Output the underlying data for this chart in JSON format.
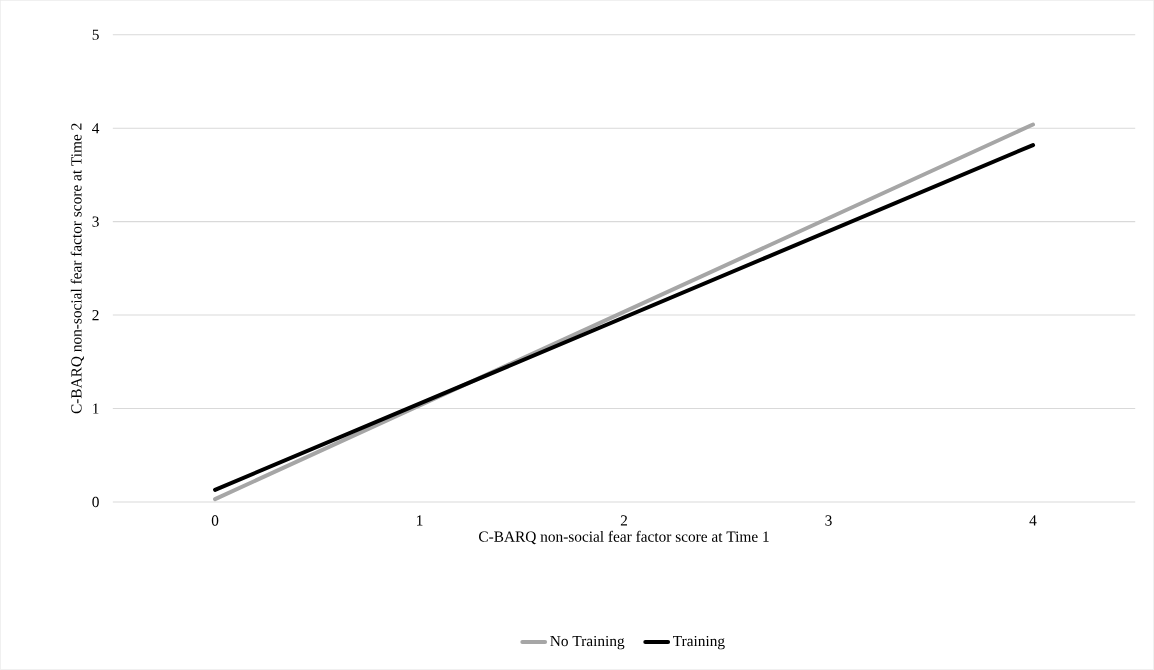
{
  "chart_data": {
    "type": "line",
    "xlabel": "C-BARQ non-social fear factor score at Time 1",
    "ylabel": "C-BARQ non-social fear factor score at Time 2",
    "x": [
      0,
      4
    ],
    "series": [
      {
        "name": "No Training",
        "color": "#a6a6a6",
        "values": [
          0.03,
          4.04
        ]
      },
      {
        "name": "Training",
        "color": "#000000",
        "values": [
          0.13,
          3.82
        ]
      }
    ],
    "xlim": [
      -0.5,
      4.5
    ],
    "xticks": [
      0,
      1,
      2,
      3,
      4
    ],
    "ylim": [
      0,
      5
    ],
    "yticks": [
      0,
      1,
      2,
      3,
      4,
      5
    ],
    "grid": "y",
    "legend": "bottom",
    "marker": "none",
    "line_style": "solid"
  }
}
